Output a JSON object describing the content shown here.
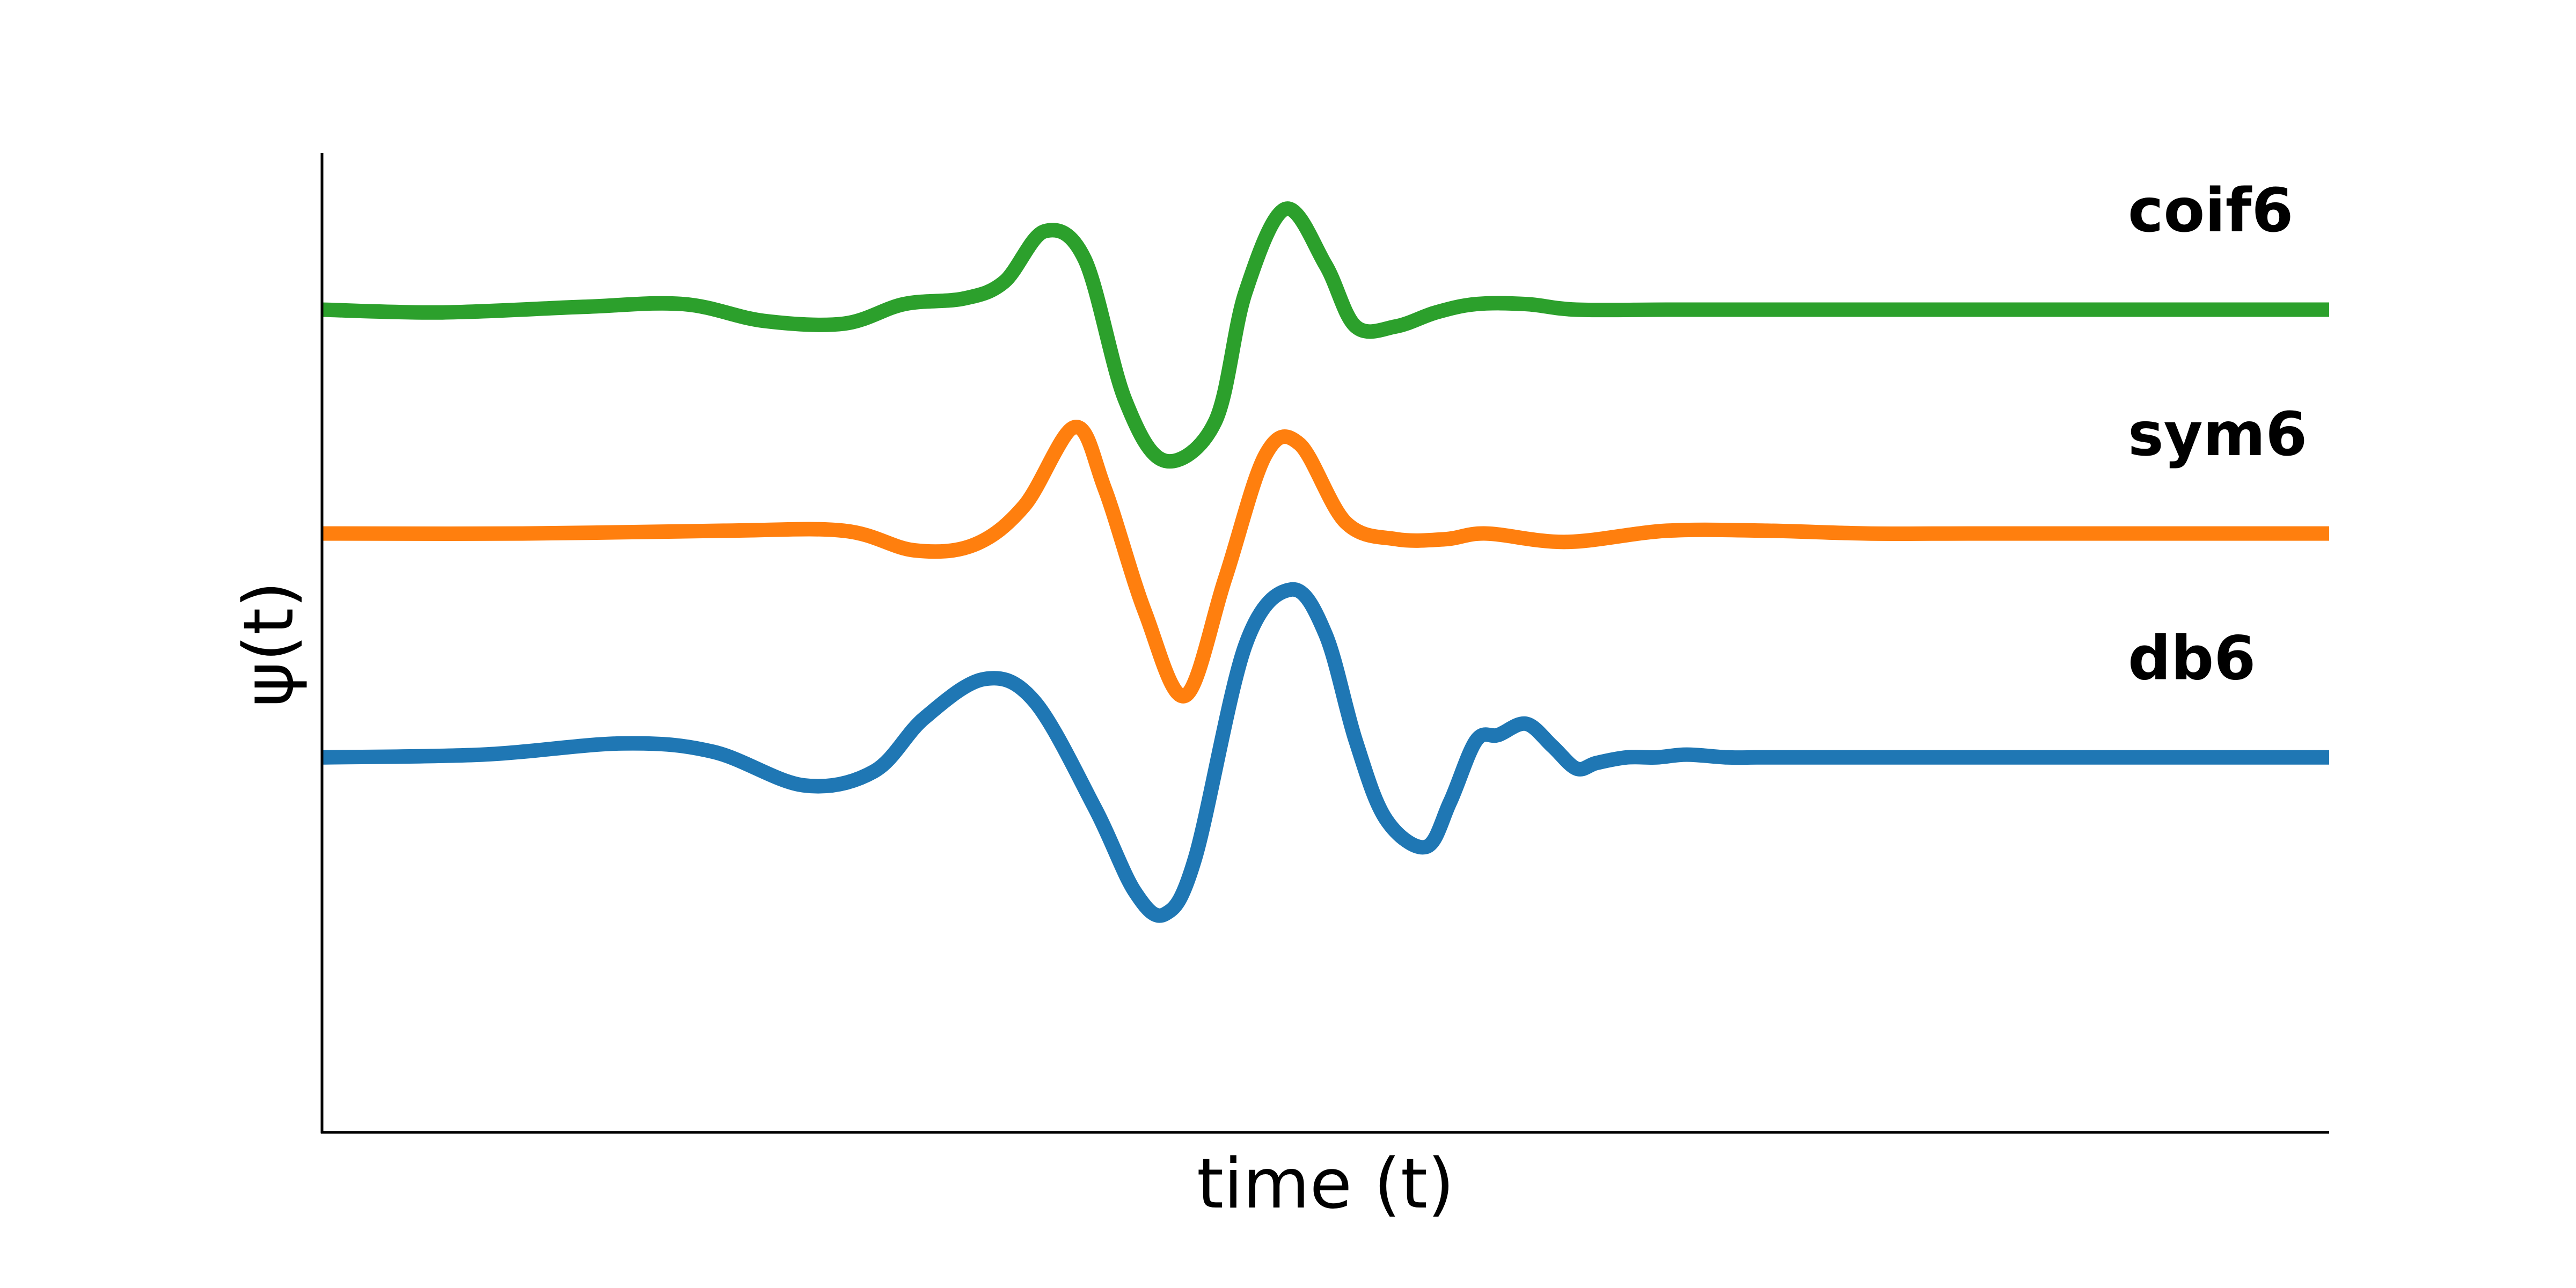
{
  "chart_data": {
    "type": "line",
    "title": "",
    "xlabel": "time (t)",
    "ylabel": "ψ(t)",
    "xlim": [
      0,
      100
    ],
    "ylim": [
      -6.7,
      10.8
    ],
    "grid": false,
    "legend": "none",
    "series": [
      {
        "name": "db6",
        "color": "#1f77b4",
        "offset": 0,
        "x": [
          0,
          8,
          15,
          19.5,
          24,
          27.5,
          30,
          33,
          35.5,
          38.5,
          40.5,
          42,
          43.5,
          46,
          48.3,
          50,
          51.5,
          53,
          55,
          56.2,
          57.5,
          58.6,
          60,
          61.3,
          62.5,
          63.5,
          65,
          66.5,
          68,
          70,
          71.5,
          73,
          75,
          77,
          79,
          82,
          86,
          90,
          95,
          100
        ],
        "y": [
          0,
          0.05,
          0.25,
          0.1,
          -0.5,
          -0.25,
          0.7,
          1.4,
          1.0,
          -0.9,
          -2.4,
          -2.8,
          -1.8,
          2.0,
          3.0,
          2.2,
          0.3,
          -1.1,
          -1.6,
          -0.8,
          0.3,
          0.4,
          0.6,
          0.2,
          -0.2,
          -0.1,
          0.0,
          0.0,
          0.05,
          0.0,
          0.0,
          0.0,
          0.0,
          0.0,
          0.0,
          0.0,
          0.0,
          0.0,
          0.0,
          0.0
        ]
      },
      {
        "name": "sym6",
        "color": "#ff7f0e",
        "offset": 4,
        "x": [
          0,
          10,
          20,
          26,
          29.5,
          32.5,
          35,
          37.5,
          39,
          41,
          43,
          45,
          47,
          48.7,
          51,
          53.5,
          56,
          58,
          62,
          67,
          72,
          77,
          82,
          88,
          95,
          100
        ],
        "y": [
          0,
          0,
          0.05,
          0.05,
          -0.3,
          -0.2,
          0.5,
          1.9,
          0.8,
          -1.4,
          -2.9,
          -0.8,
          1.4,
          1.6,
          0.2,
          -0.1,
          -0.1,
          0.0,
          -0.15,
          0.05,
          0.05,
          0.0,
          0.0,
          0.0,
          0.0,
          0.0
        ]
      },
      {
        "name": "coif6",
        "color": "#2ca02c",
        "offset": 8,
        "x": [
          0,
          6,
          13,
          18,
          22,
          26,
          29,
          32,
          34,
          36,
          38,
          40,
          42,
          44.5,
          46,
          48,
          50,
          51.5,
          53.5,
          55.5,
          57.5,
          60,
          62.5,
          67,
          72,
          80,
          90,
          100
        ],
        "y": [
          0,
          -0.05,
          0.05,
          0.1,
          -0.2,
          -0.25,
          0.1,
          0.2,
          0.5,
          1.4,
          0.9,
          -1.6,
          -2.7,
          -2.0,
          0.3,
          1.8,
          0.8,
          -0.3,
          -0.3,
          -0.05,
          0.1,
          0.1,
          0.0,
          0.0,
          0.0,
          0.0,
          0.0,
          0.0
        ]
      }
    ]
  }
}
